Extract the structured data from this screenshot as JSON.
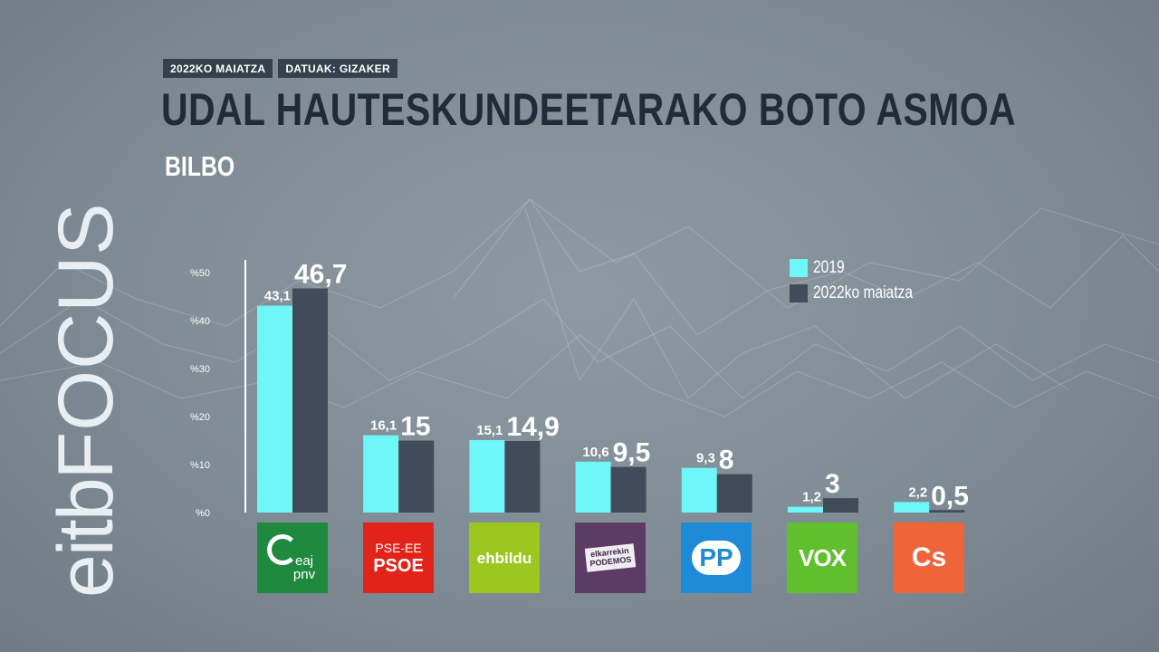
{
  "header": {
    "date_tag": "2022KO MAIATZA",
    "source_tag": "DATUAK: GIZAKER",
    "title": "UDAL HAUTESKUNDEETARAKO BOTO ASMOA",
    "subtitle": "BILBO"
  },
  "brand": {
    "prefix": "eitb",
    "focus": "FOCUS"
  },
  "colors": {
    "series_2019": "#6ff6f8",
    "series_2022": "#414b59",
    "title": "#1f2b38",
    "axis_label": "#ffffff"
  },
  "legend": {
    "items": [
      {
        "label": "2019",
        "color": "#6ff6f8"
      },
      {
        "label": "2022ko maiatza",
        "color": "#414b59"
      }
    ]
  },
  "parties": [
    {
      "label_lines": [
        "eaj",
        "pnv"
      ],
      "icon": "eaj-pnv-logo",
      "color": "#1f8a3d"
    },
    {
      "label_lines": [
        "PSE-EE",
        "PSOE"
      ],
      "icon": "pse-psoe-logo",
      "color": "#e2231a"
    },
    {
      "label_lines": [
        "ehbildu"
      ],
      "icon": "ehbildu-logo",
      "color": "#9cc71e"
    },
    {
      "label_lines": [
        "elkarrekin",
        "PODEMOS"
      ],
      "icon": "elkarrekin-podemos-logo",
      "color": "#5d3c63"
    },
    {
      "label_lines": [
        "PP"
      ],
      "icon": "pp-logo",
      "color": "#1e8ad8"
    },
    {
      "label_lines": [
        "VOX"
      ],
      "icon": "vox-logo",
      "color": "#5fbf2c"
    },
    {
      "label_lines": [
        "Cs"
      ],
      "icon": "cs-logo",
      "color": "#f0643a"
    }
  ],
  "chart_data": {
    "type": "bar",
    "categories": [
      "EAJ-PNV",
      "PSE-EE PSOE",
      "EH Bildu",
      "Elkarrekin Podemos",
      "PP",
      "VOX",
      "Cs"
    ],
    "series": [
      {
        "name": "2019",
        "values": [
          43.1,
          16.1,
          15.1,
          10.6,
          9.3,
          1.2,
          2.2
        ],
        "labels": [
          "43,1",
          "16,1",
          "15,1",
          "10,6",
          "9,3",
          "1,2",
          "2,2"
        ]
      },
      {
        "name": "2022ko maiatza",
        "values": [
          46.7,
          15,
          14.9,
          9.5,
          8,
          3,
          0.5
        ],
        "labels": [
          "46,7",
          "15",
          "14,9",
          "9,5",
          "8",
          "3",
          "0,5"
        ]
      }
    ],
    "y_ticks": [
      0,
      10,
      20,
      30,
      40,
      50
    ],
    "y_tick_labels": [
      "%0",
      "%10",
      "%20",
      "%30",
      "%40",
      "%50"
    ],
    "ylim": [
      0,
      50
    ],
    "grid": false,
    "legend_position": "top-right"
  }
}
